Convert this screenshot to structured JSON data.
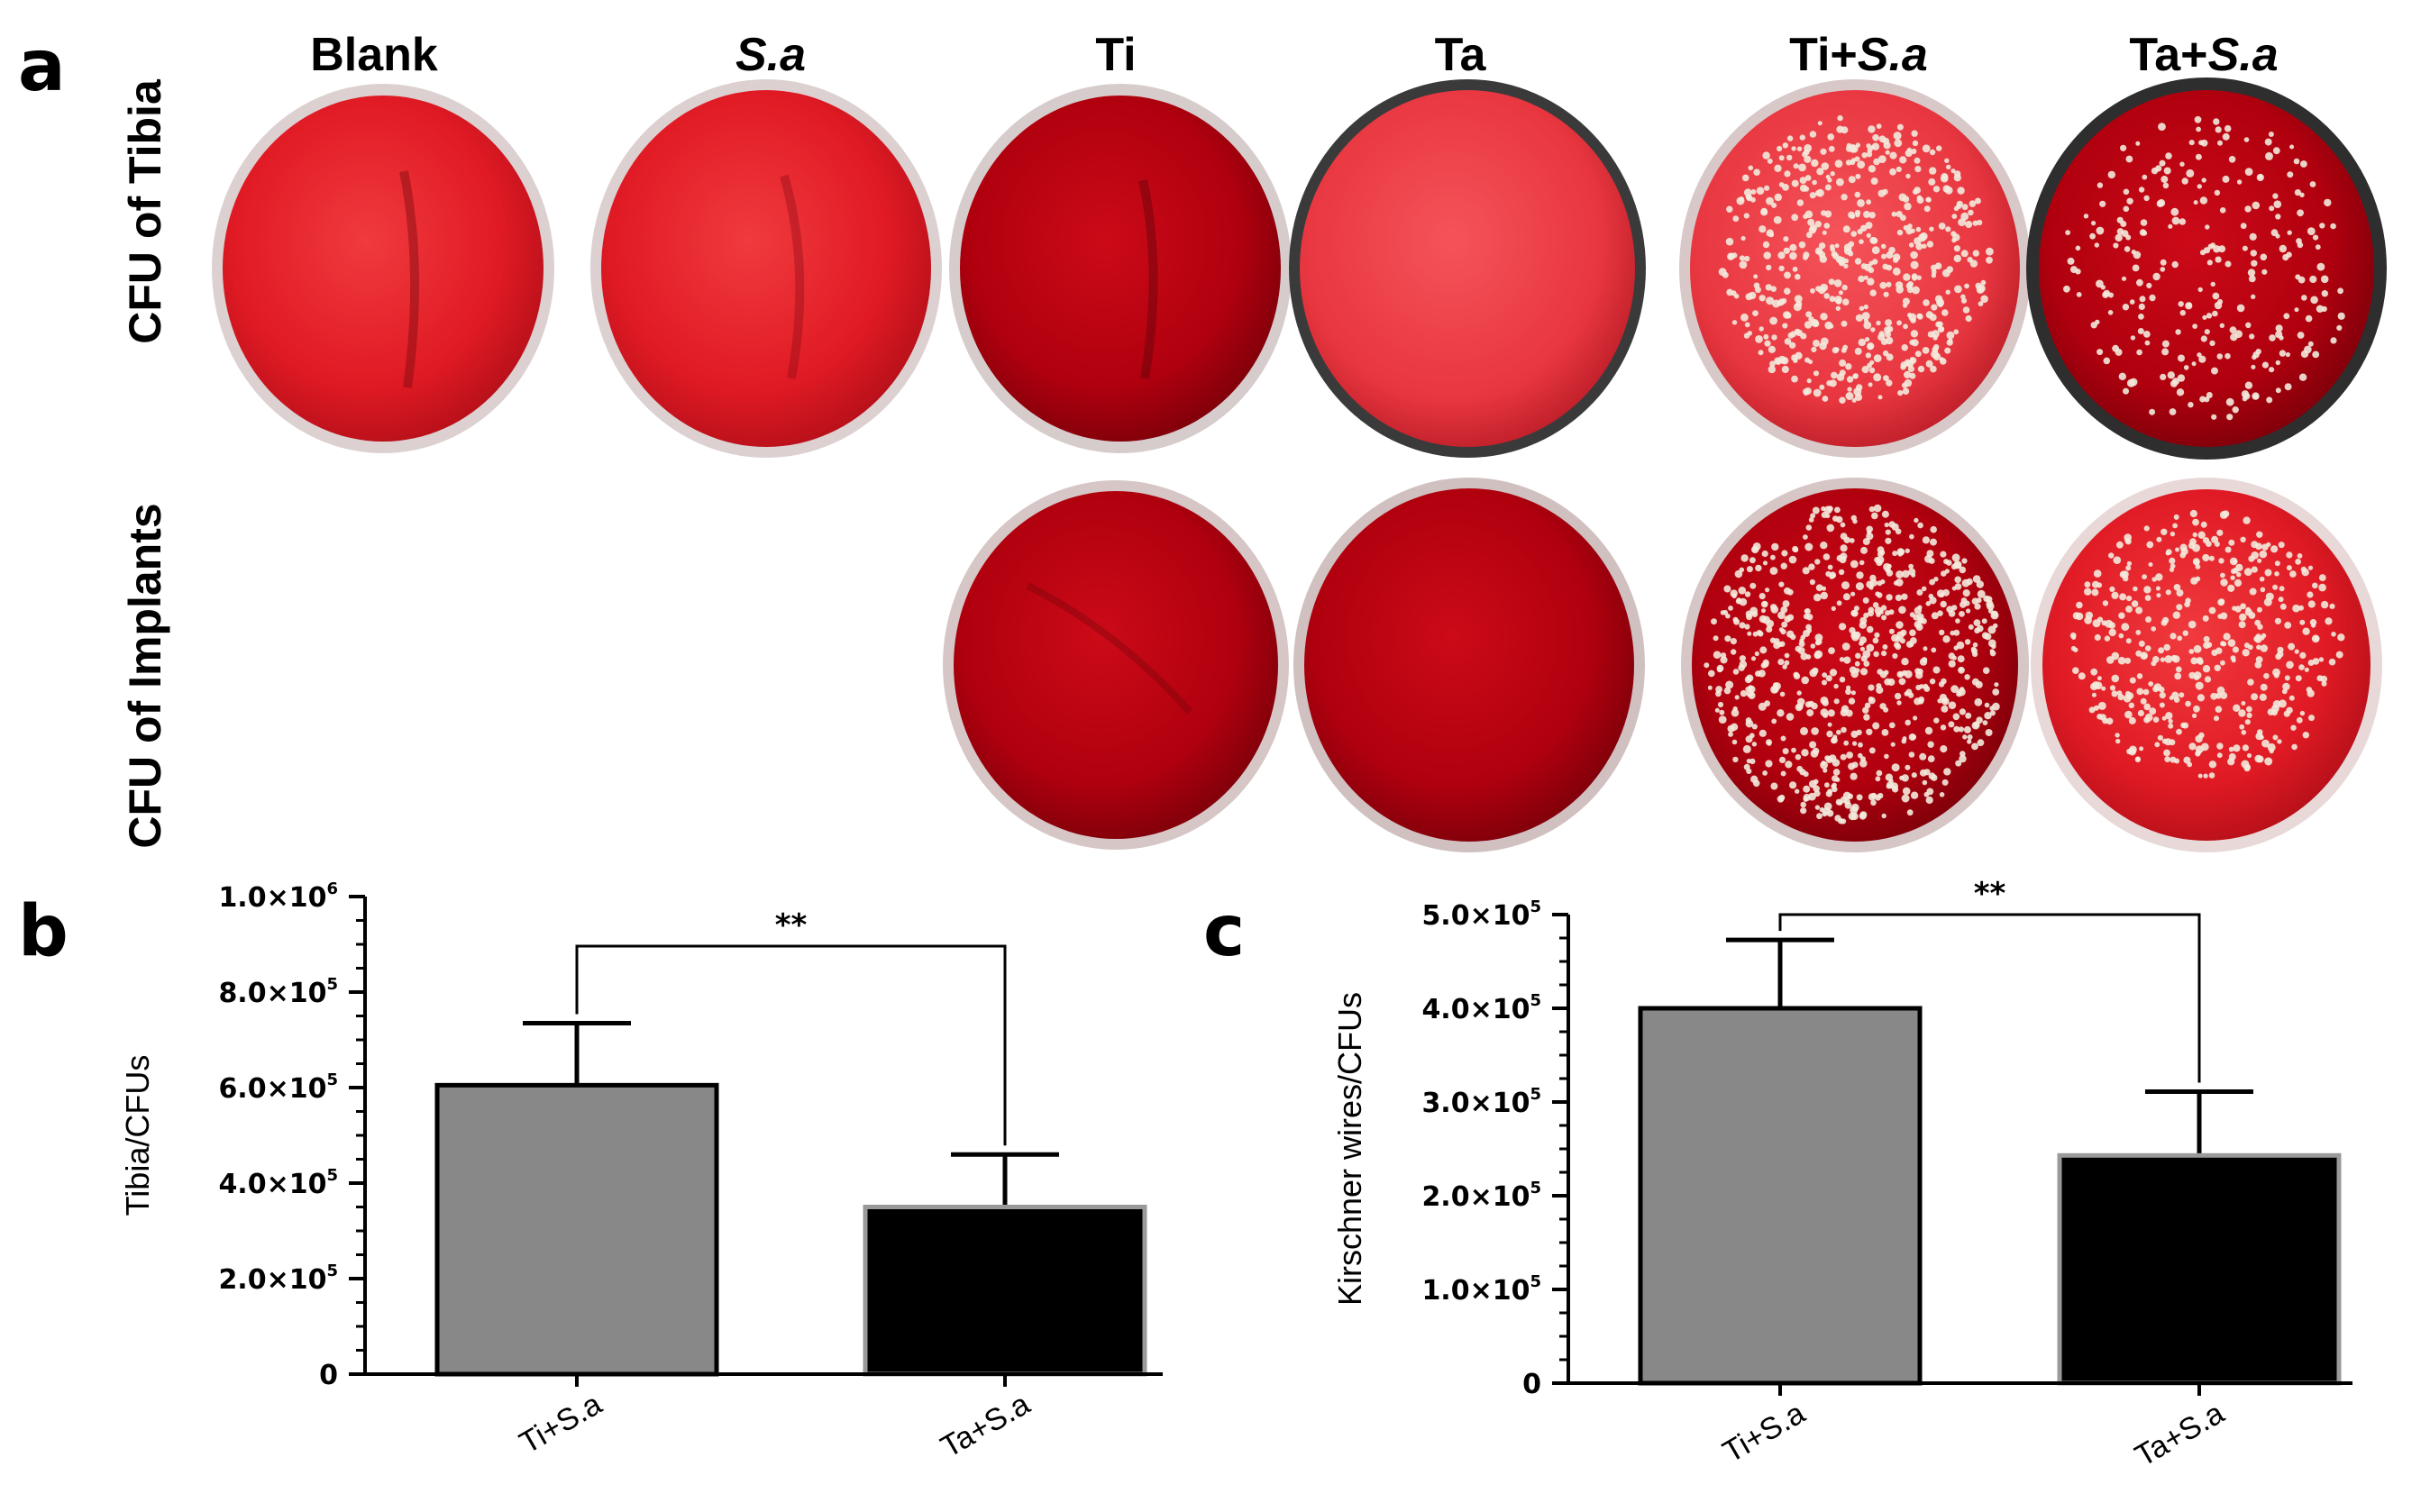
{
  "panel_a": {
    "letter": "a",
    "column_labels": [
      {
        "prefix": "Blank",
        "italic": ""
      },
      {
        "prefix": "",
        "italic": "S.a"
      },
      {
        "prefix": "Ti",
        "italic": ""
      },
      {
        "prefix": "Ta",
        "italic": ""
      },
      {
        "prefix": "Ti+",
        "italic": "S.a"
      },
      {
        "prefix": "Ta+",
        "italic": "S.a"
      }
    ],
    "row_labels": [
      "CFU of Tibia",
      "CFU of Implants"
    ],
    "plates": {
      "tibia": [
        {
          "column": 0,
          "colonies": 0
        },
        {
          "column": 1,
          "colonies": 0
        },
        {
          "column": 2,
          "colonies": 0
        },
        {
          "column": 3,
          "colonies": 0
        },
        {
          "column": 4,
          "colonies": 520
        },
        {
          "column": 5,
          "colonies": 260
        }
      ],
      "implants": [
        {
          "column": 2,
          "colonies": 0
        },
        {
          "column": 3,
          "colonies": 0
        },
        {
          "column": 4,
          "colonies": 700
        },
        {
          "column": 5,
          "colonies": 420
        }
      ]
    },
    "colors": {
      "agar_light": "#e8202a",
      "agar_dark": "#b8000e",
      "rim": "#d9c9c9",
      "colony": "#f3eadc"
    }
  },
  "chart_data": [
    {
      "letter": "b",
      "type": "bar",
      "categories": [
        "Ti+S.a",
        "Ta+S.a"
      ],
      "values": [
        605000,
        350000
      ],
      "errors": [
        130000,
        110000
      ],
      "ylabel": "Tibia/CFUs",
      "ylim": [
        0,
        1000000
      ],
      "yticks": [
        {
          "value": 0,
          "mant": "0",
          "exp": ""
        },
        {
          "value": 200000,
          "mant": "2.0×10",
          "exp": "5"
        },
        {
          "value": 400000,
          "mant": "4.0×10",
          "exp": "5"
        },
        {
          "value": 600000,
          "mant": "6.0×10",
          "exp": "5"
        },
        {
          "value": 800000,
          "mant": "8.0×10",
          "exp": "5"
        },
        {
          "value": 1000000,
          "mant": "1.0×10",
          "exp": "6"
        }
      ],
      "significance": "**",
      "bar_colors": [
        "#888888",
        "#000000"
      ]
    },
    {
      "letter": "c",
      "type": "bar",
      "categories": [
        "Ti+S.a",
        "Ta+S.a"
      ],
      "values": [
        400000,
        243000
      ],
      "errors": [
        73000,
        68000
      ],
      "ylabel": "Kirschner wires/CFUs",
      "ylim": [
        0,
        500000
      ],
      "yticks": [
        {
          "value": 0,
          "mant": "0",
          "exp": ""
        },
        {
          "value": 100000,
          "mant": "1.0×10",
          "exp": "5"
        },
        {
          "value": 200000,
          "mant": "2.0×10",
          "exp": "5"
        },
        {
          "value": 300000,
          "mant": "3.0×10",
          "exp": "5"
        },
        {
          "value": 400000,
          "mant": "4.0×10",
          "exp": "5"
        },
        {
          "value": 500000,
          "mant": "5.0×10",
          "exp": "5"
        }
      ],
      "significance": "**",
      "bar_colors": [
        "#888888",
        "#000000"
      ]
    }
  ]
}
